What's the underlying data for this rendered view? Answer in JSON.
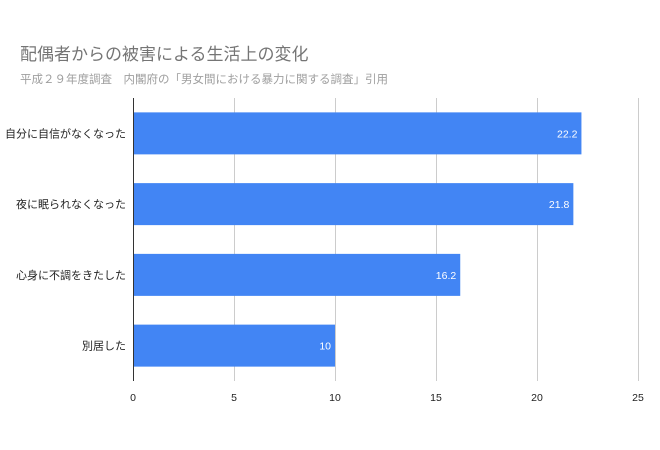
{
  "chart_data": {
    "type": "bar",
    "orientation": "horizontal",
    "title": "配偶者からの被害による生活上の変化",
    "subtitle": "平成２９年度調査　内閣府の「男女間における暴力に関する調査」引用",
    "categories": [
      "自分に自信がなくなった",
      "夜に眠られなくなった",
      "心身に不調をきたした",
      "別居した"
    ],
    "values": [
      22.2,
      21.8,
      16.2,
      10
    ],
    "data_labels": [
      "22.2",
      "21.8",
      "16.2",
      "10"
    ],
    "xlim": [
      0,
      25
    ],
    "x_ticks": [
      0,
      5,
      10,
      15,
      20,
      25
    ],
    "x_tick_labels": [
      "0",
      "5",
      "10",
      "15",
      "20",
      "25"
    ],
    "xlabel": "",
    "ylabel": "",
    "grid": true,
    "bar_color": "#4285f4",
    "grid_color": "#cccccc",
    "axis_color": "#333333"
  }
}
